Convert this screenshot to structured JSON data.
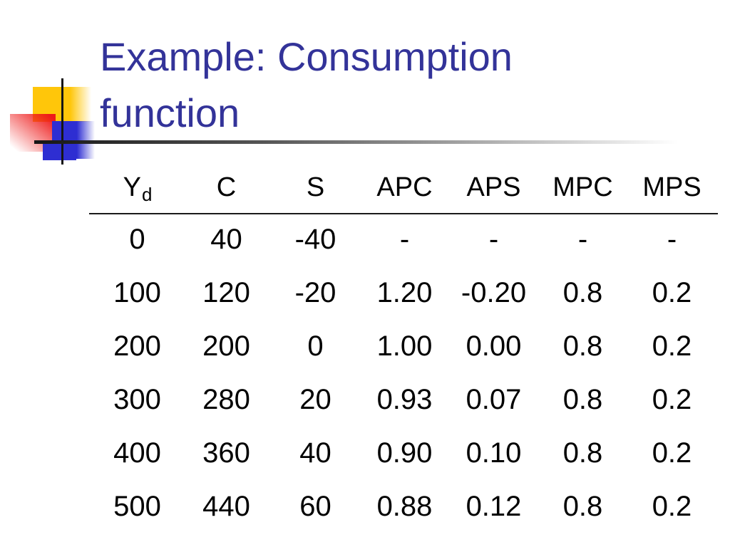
{
  "slide": {
    "title_line1": "Example: Consumption",
    "title_line2": "function"
  },
  "colors": {
    "title_text": "#333399",
    "deco_yellow": "#FFC60A",
    "deco_red": "#EE1A1A",
    "deco_blue": "#2E2ED2",
    "table_text": "#000000",
    "background": "#FFFFFF"
  },
  "table": {
    "headers": [
      {
        "label": "Y",
        "sub": "d"
      },
      {
        "label": "C",
        "sub": ""
      },
      {
        "label": "S",
        "sub": ""
      },
      {
        "label": "APC",
        "sub": ""
      },
      {
        "label": "APS",
        "sub": ""
      },
      {
        "label": "MPC",
        "sub": ""
      },
      {
        "label": "MPS",
        "sub": ""
      }
    ],
    "rows": [
      [
        "0",
        "40",
        "-40",
        "-",
        "-",
        "-",
        "-"
      ],
      [
        "100",
        "120",
        "-20",
        "1.20",
        "-0.20",
        "0.8",
        "0.2"
      ],
      [
        "200",
        "200",
        "0",
        "1.00",
        "0.00",
        "0.8",
        "0.2"
      ],
      [
        "300",
        "280",
        "20",
        "0.93",
        "0.07",
        "0.8",
        "0.2"
      ],
      [
        "400",
        "360",
        "40",
        "0.90",
        "0.10",
        "0.8",
        "0.2"
      ],
      [
        "500",
        "440",
        "60",
        "0.88",
        "0.12",
        "0.8",
        "0.2"
      ]
    ]
  }
}
